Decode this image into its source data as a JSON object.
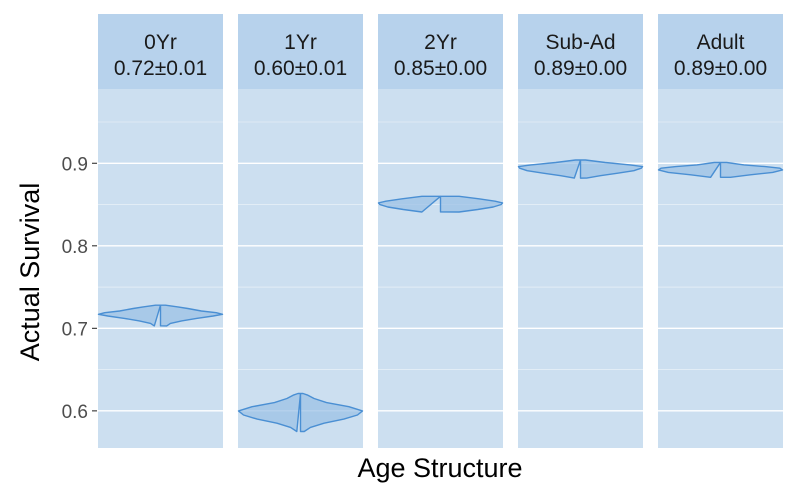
{
  "chart_data": {
    "type": "violin",
    "xlabel": "Age Structure",
    "ylabel": "Actual Survival",
    "ylim": [
      0.555,
      0.99
    ],
    "yticks": [
      0.6,
      0.7,
      0.8,
      0.9
    ],
    "yticklabels": [
      "0.6",
      "0.7",
      "0.8",
      "0.9"
    ],
    "grid": true,
    "colors": {
      "panel": "#ccdff0",
      "strip": "#b7d2ec",
      "violin_fill": "#9cc1e6",
      "violin_stroke": "#4a8fd3",
      "grid": "#ffffff"
    },
    "panels": [
      {
        "name": "0Yr",
        "label": "0.72±0.01",
        "min": 0.703,
        "max": 0.728,
        "profile": [
          [
            0.703,
            0.1
          ],
          [
            0.706,
            0.16
          ],
          [
            0.709,
            0.34
          ],
          [
            0.712,
            0.58
          ],
          [
            0.715,
            0.85
          ],
          [
            0.717,
            1.0
          ],
          [
            0.719,
            0.9
          ],
          [
            0.721,
            0.66
          ],
          [
            0.724,
            0.44
          ],
          [
            0.726,
            0.28
          ],
          [
            0.728,
            0.08
          ]
        ]
      },
      {
        "name": "1Yr",
        "label": "0.60±0.01",
        "min": 0.575,
        "max": 0.621,
        "profile": [
          [
            0.575,
            0.06
          ],
          [
            0.58,
            0.16
          ],
          [
            0.585,
            0.38
          ],
          [
            0.59,
            0.7
          ],
          [
            0.595,
            0.92
          ],
          [
            0.6,
            1.0
          ],
          [
            0.605,
            0.78
          ],
          [
            0.61,
            0.42
          ],
          [
            0.615,
            0.22
          ],
          [
            0.619,
            0.12
          ],
          [
            0.621,
            0.04
          ]
        ]
      },
      {
        "name": "2Yr",
        "label": "0.85±0.00",
        "min": 0.841,
        "max": 0.86,
        "profile": [
          [
            0.841,
            0.3
          ],
          [
            0.844,
            0.6
          ],
          [
            0.847,
            0.85
          ],
          [
            0.85,
            0.98
          ],
          [
            0.852,
            1.0
          ],
          [
            0.854,
            0.88
          ],
          [
            0.857,
            0.62
          ],
          [
            0.86,
            0.3
          ]
        ]
      },
      {
        "name": "Sub-Ad",
        "label": "0.89±0.00",
        "min": 0.882,
        "max": 0.904,
        "profile": [
          [
            0.882,
            0.1
          ],
          [
            0.885,
            0.32
          ],
          [
            0.888,
            0.6
          ],
          [
            0.891,
            0.86
          ],
          [
            0.894,
            0.98
          ],
          [
            0.896,
            1.0
          ],
          [
            0.898,
            0.8
          ],
          [
            0.901,
            0.4
          ],
          [
            0.904,
            0.08
          ]
        ]
      },
      {
        "name": "Adult",
        "label": "0.89±0.00",
        "min": 0.883,
        "max": 0.901,
        "profile": [
          [
            0.883,
            0.16
          ],
          [
            0.886,
            0.48
          ],
          [
            0.889,
            0.84
          ],
          [
            0.892,
            1.0
          ],
          [
            0.894,
            0.96
          ],
          [
            0.896,
            0.72
          ],
          [
            0.898,
            0.38
          ],
          [
            0.901,
            0.1
          ]
        ]
      }
    ]
  }
}
